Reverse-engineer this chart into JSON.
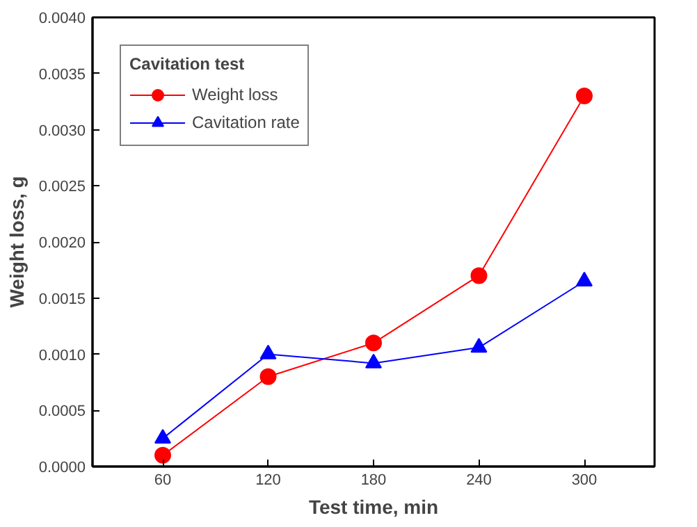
{
  "chart_data": {
    "type": "line",
    "xlabel": "Test time, min",
    "ylabel": "Weight loss, g",
    "legend_title": "Cavitation test",
    "legend": "top left",
    "grid": false,
    "x": [
      60,
      120,
      180,
      240,
      300
    ],
    "series": [
      {
        "name": "Weight loss",
        "color": "#ff0000",
        "marker": "circle",
        "values": [
          0.0001,
          0.0008,
          0.0011,
          0.0017,
          0.0033
        ]
      },
      {
        "name": "Cavitation rate",
        "color": "#0000ff",
        "marker": "triangle",
        "values": [
          0.00025,
          0.001,
          0.00092,
          0.00106,
          0.00165
        ]
      }
    ],
    "xlim": [
      20,
      340
    ],
    "xticks": [
      60,
      120,
      180,
      240,
      300
    ],
    "ylim": [
      0,
      0.004
    ],
    "yticks": [
      {
        "value": 0,
        "label": "0.0000"
      },
      {
        "value": 0.0005,
        "label": "0.0005"
      },
      {
        "value": 0.001,
        "label": "0.0010"
      },
      {
        "value": 0.0015,
        "label": "0.0015"
      },
      {
        "value": 0.002,
        "label": "0.0020"
      },
      {
        "value": 0.0025,
        "label": "0.0025"
      },
      {
        "value": 0.003,
        "label": "0.0030"
      },
      {
        "value": 0.0035,
        "label": "0.0035"
      },
      {
        "value": 0.004,
        "label": "0.0040"
      }
    ]
  }
}
